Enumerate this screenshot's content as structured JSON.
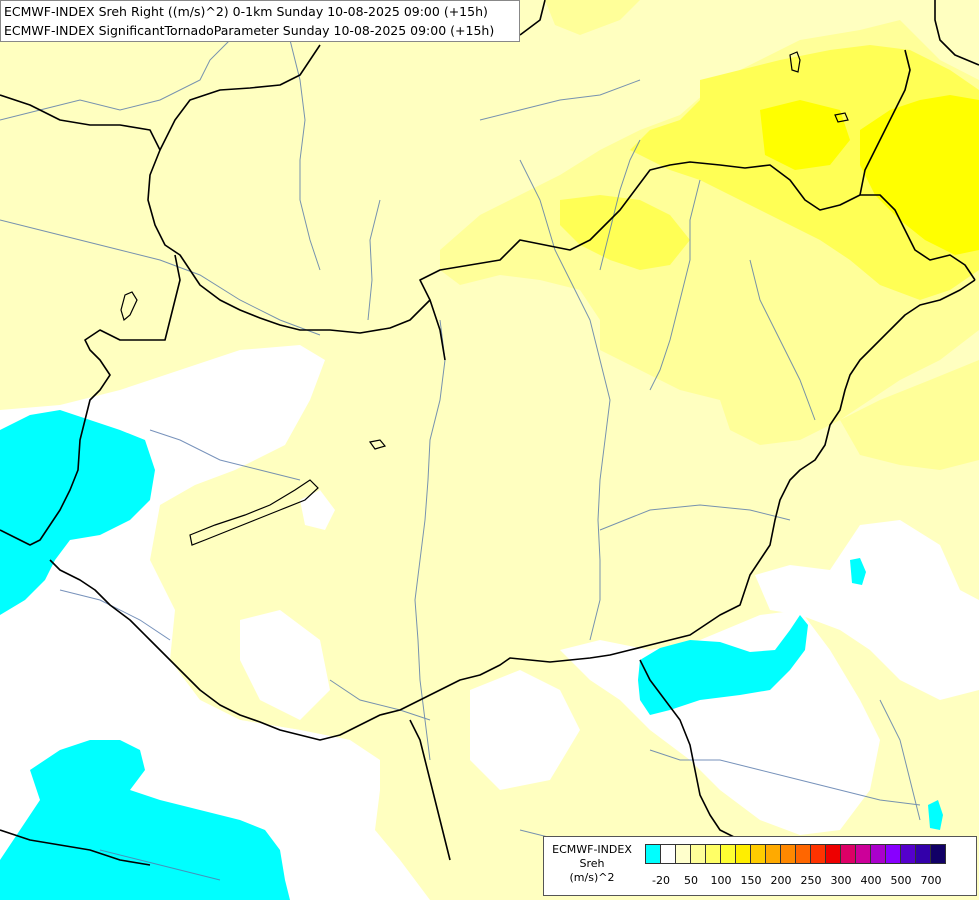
{
  "title": {
    "line1": "ECMWF-INDEX Sreh Right ((m/s)^2) 0-1km Sunday 10-08-2025 09:00 (+15h)",
    "line2": "ECMWF-INDEX SignificantTornadoParameter Sunday 10-08-2025 09:00 (+15h)"
  },
  "legend": {
    "line1": "ECMWF-INDEX",
    "line2": "Sreh",
    "line3": "(m/s)^2",
    "colors": [
      "#00ffff",
      "#ffffff",
      "#ffffcc",
      "#ffff99",
      "#ffff66",
      "#ffff33",
      "#ffee00",
      "#ffcc00",
      "#ffaa00",
      "#ff8800",
      "#ff6600",
      "#ff3300",
      "#ee0000",
      "#dd0066",
      "#cc0099",
      "#aa00cc",
      "#8800ff",
      "#5500cc",
      "#3300aa",
      "#110066"
    ],
    "ticks": [
      "-20",
      "50",
      "100",
      "150",
      "200",
      "250",
      "300",
      "400",
      "500",
      "700"
    ]
  },
  "map": {
    "field_colors": {
      "cyan": "#00ffff",
      "white": "#ffffff",
      "pale_yellow": "#ffffc0",
      "light_yellow": "#ffff99",
      "yellow": "#ffff55",
      "strong_yellow": "#ffff00"
    },
    "border_color": "#000000",
    "river_color": "#5577aa"
  }
}
